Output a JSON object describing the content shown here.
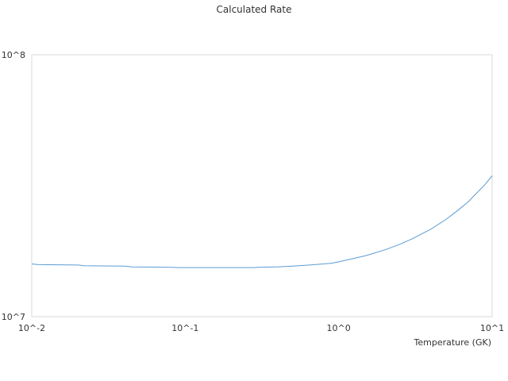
{
  "chart_data": {
    "type": "line",
    "title": "Calculated Rate",
    "xlabel": "Temperature (GK)",
    "ylabel": "",
    "x_scale": "log",
    "y_scale": "log",
    "xlim": [
      0.01,
      10
    ],
    "ylim": [
      10000000,
      100000000
    ],
    "x_tick_labels": [
      "10^-2",
      "10^-1",
      "10^0",
      "10^1"
    ],
    "y_tick_labels": [
      "10^7",
      "10^8"
    ],
    "grid": false,
    "legend": "none",
    "series": [
      {
        "color": "#5b9bd5",
        "x": [
          0.01,
          0.011,
          0.02,
          0.022,
          0.04,
          0.045,
          0.08,
          0.09,
          0.2,
          0.28,
          0.3,
          0.4,
          0.5,
          0.7,
          0.9,
          1.0,
          1.2,
          1.5,
          2.0,
          2.5,
          3.0,
          4.0,
          5.0,
          6.0,
          7.0,
          8.0,
          9.0,
          10.0
        ],
        "y": [
          15900000,
          15800000,
          15750000,
          15650000,
          15600000,
          15500000,
          15450000,
          15400000,
          15400000,
          15400000,
          15450000,
          15500000,
          15600000,
          15800000,
          16000000,
          16200000,
          16600000,
          17100000,
          18000000,
          18900000,
          19800000,
          21600000,
          23500000,
          25500000,
          27500000,
          29800000,
          32000000,
          34500000
        ]
      }
    ]
  }
}
